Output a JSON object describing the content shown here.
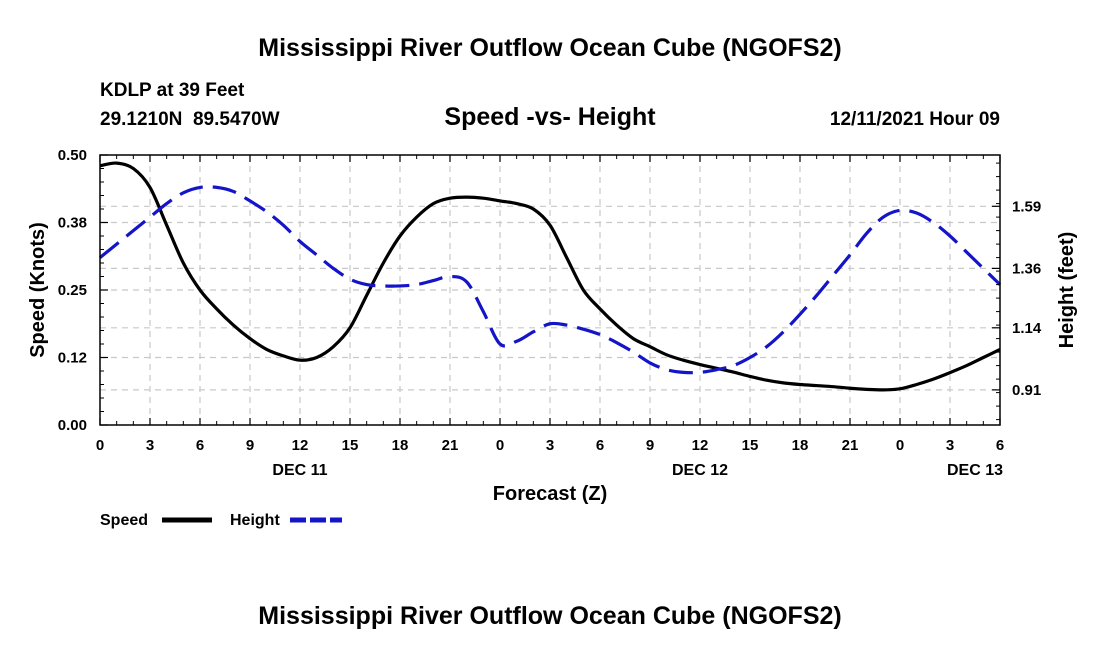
{
  "chart_data": {
    "type": "line",
    "title": "Mississippi River Outflow Ocean Cube (NGOFS2)",
    "subtitle": "Speed -vs- Height",
    "station": "KDLP at 39 Feet",
    "coords": "29.1210N  89.5470W",
    "datetime": "12/11/2021 Hour 09",
    "footer_title": "Mississippi River Outflow Ocean Cube (NGOFS2)",
    "xlabel": "Forecast (Z)",
    "ylabel_left": "Speed (Knots)",
    "ylabel_right": "Height (feet)",
    "x_range": [
      0,
      54
    ],
    "x_ticks": [
      0,
      3,
      6,
      9,
      12,
      15,
      18,
      21,
      24,
      27,
      30,
      33,
      36,
      39,
      42,
      45,
      48,
      51,
      54
    ],
    "x_tick_labels": [
      "0",
      "3",
      "6",
      "9",
      "12",
      "15",
      "18",
      "21",
      "0",
      "3",
      "6",
      "9",
      "12",
      "15",
      "18",
      "21",
      "0",
      "3",
      "6"
    ],
    "date_labels": [
      {
        "x": 12,
        "label": "DEC 11"
      },
      {
        "x": 36,
        "label": "DEC 12"
      },
      {
        "x": 52.5,
        "label": "DEC 13"
      }
    ],
    "y_left_range": [
      0,
      0.5
    ],
    "y_left_ticks": [
      0,
      0.125,
      0.25,
      0.375,
      0.5
    ],
    "y_left_tick_labels": [
      "0.00",
      "0.12",
      "0.25",
      "0.38",
      "0.50"
    ],
    "y_right_range": [
      0.78,
      1.78
    ],
    "y_right_ticks": [
      0.91,
      1.14,
      1.36,
      1.59
    ],
    "y_right_tick_labels": [
      "0.91",
      "1.14",
      "1.36",
      "1.59"
    ],
    "series": [
      {
        "name": "Speed",
        "axis": "left",
        "color": "#000000",
        "dash": "solid",
        "x": [
          0,
          1,
          2,
          3,
          4,
          5,
          6,
          7,
          8,
          9,
          10,
          11,
          12,
          13,
          14,
          15,
          16,
          17,
          18,
          19,
          20,
          21,
          22,
          23,
          24,
          25,
          26,
          27,
          28,
          29,
          30,
          31,
          32,
          33,
          34,
          35,
          36,
          37,
          38,
          39,
          40,
          41,
          42,
          43,
          44,
          45,
          46,
          47,
          48,
          49,
          50,
          51,
          52,
          53,
          54
        ],
        "values": [
          0.48,
          0.485,
          0.475,
          0.44,
          0.37,
          0.3,
          0.25,
          0.215,
          0.185,
          0.16,
          0.14,
          0.128,
          0.12,
          0.125,
          0.145,
          0.18,
          0.24,
          0.3,
          0.35,
          0.385,
          0.41,
          0.42,
          0.422,
          0.42,
          0.415,
          0.41,
          0.4,
          0.37,
          0.31,
          0.25,
          0.215,
          0.185,
          0.16,
          0.145,
          0.13,
          0.12,
          0.112,
          0.105,
          0.098,
          0.09,
          0.083,
          0.078,
          0.075,
          0.073,
          0.071,
          0.068,
          0.066,
          0.065,
          0.067,
          0.075,
          0.085,
          0.097,
          0.11,
          0.125,
          0.14
        ]
      },
      {
        "name": "Height",
        "axis": "right",
        "color": "#1414c8",
        "dash": "dashed",
        "x": [
          0,
          1,
          2,
          3,
          4,
          5,
          6,
          7,
          8,
          9,
          10,
          11,
          12,
          13,
          14,
          15,
          16,
          17,
          18,
          19,
          20,
          21,
          22,
          23,
          24,
          25,
          26,
          27,
          28,
          29,
          30,
          31,
          32,
          33,
          34,
          35,
          36,
          37,
          38,
          39,
          40,
          41,
          42,
          43,
          44,
          45,
          46,
          47,
          48,
          49,
          50,
          51,
          52,
          53,
          54
        ],
        "values": [
          1.4,
          1.45,
          1.5,
          1.55,
          1.6,
          1.64,
          1.66,
          1.66,
          1.645,
          1.61,
          1.57,
          1.52,
          1.46,
          1.41,
          1.36,
          1.32,
          1.3,
          1.295,
          1.295,
          1.3,
          1.315,
          1.33,
          1.31,
          1.2,
          1.08,
          1.09,
          1.125,
          1.155,
          1.15,
          1.135,
          1.115,
          1.085,
          1.05,
          1.01,
          0.985,
          0.975,
          0.975,
          0.985,
          1.0,
          1.03,
          1.07,
          1.125,
          1.19,
          1.26,
          1.335,
          1.41,
          1.49,
          1.55,
          1.575,
          1.565,
          1.53,
          1.48,
          1.42,
          1.36,
          1.3
        ]
      }
    ],
    "legend": [
      {
        "label": "Speed",
        "color": "#000000",
        "dash": "solid"
      },
      {
        "label": "Height",
        "color": "#1414c8",
        "dash": "dashed"
      }
    ],
    "legend_position": "bottom-left",
    "grid": true
  }
}
